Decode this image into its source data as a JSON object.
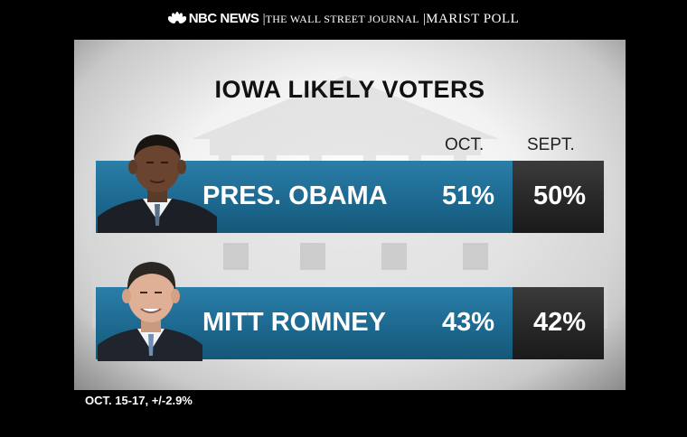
{
  "header": {
    "nbc": "NBC NEWS",
    "wsj": "THE WALL STREET JOURNAL",
    "marist": "MARIST POLL"
  },
  "chart_data": {
    "type": "table",
    "title": "IOWA LIKELY VOTERS",
    "columns": [
      "OCT.",
      "SEPT."
    ],
    "rows": [
      {
        "candidate": "PRES. OBAMA",
        "oct": "51%",
        "sept": "50%",
        "oct_value": 51,
        "sept_value": 50
      },
      {
        "candidate": "MITT ROMNEY",
        "oct": "43%",
        "sept": "42%",
        "oct_value": 43,
        "sept_value": 42
      }
    ],
    "footnote": "OCT. 15-17, +/-2.9%"
  },
  "colors": {
    "bar_blue": "#1d6990",
    "bar_dark": "#262626"
  }
}
